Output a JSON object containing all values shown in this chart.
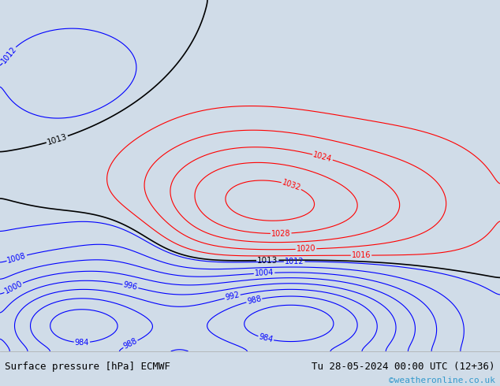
{
  "title_left": "Surface pressure [hPa] ECMWF",
  "title_right": "Tu 28-05-2024 00:00 UTC (12+36)",
  "watermark": "©weatheronline.co.uk",
  "land_color": "#c8f0a0",
  "ocean_color": "#d8e8f0",
  "watermark_color": "#3399cc",
  "bottom_bg": "#f0f0f0",
  "lon_min": 95,
  "lon_max": 185,
  "lat_min": -57,
  "lat_max": 12,
  "levels_red": [
    1016,
    1020,
    1024,
    1028,
    1032,
    1036,
    1040,
    1044,
    1046
  ],
  "levels_blue": [
    976,
    980,
    984,
    988,
    992,
    996,
    1000,
    1004,
    1008,
    1012
  ],
  "levels_black": [
    1013
  ],
  "label_fontsize": 7
}
